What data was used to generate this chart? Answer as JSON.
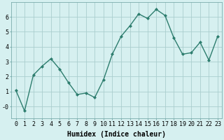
{
  "x": [
    0,
    1,
    2,
    3,
    4,
    5,
    6,
    7,
    8,
    9,
    10,
    11,
    12,
    13,
    14,
    15,
    16,
    17,
    18,
    19,
    20,
    21,
    22,
    23
  ],
  "y": [
    1.1,
    -0.3,
    2.1,
    2.7,
    3.2,
    2.5,
    1.6,
    0.8,
    0.9,
    0.6,
    1.8,
    3.5,
    4.7,
    5.4,
    6.2,
    5.9,
    6.5,
    6.1,
    4.6,
    3.5,
    3.6,
    4.3,
    3.1,
    4.7
  ],
  "line_color": "#2d7d6e",
  "marker": "D",
  "markersize": 2.0,
  "linewidth": 1.0,
  "bg_color": "#d6f0f0",
  "grid_color": "#aacece",
  "xlabel": "Humidex (Indice chaleur)",
  "xlabel_fontsize": 7,
  "tick_fontsize": 6,
  "ylim": [
    -0.8,
    7.0
  ],
  "xlim": [
    -0.5,
    23.5
  ],
  "yticks": [
    0,
    1,
    2,
    3,
    4,
    5,
    6
  ],
  "ytick_labels": [
    "-0",
    "1",
    "2",
    "3",
    "4",
    "5",
    "6"
  ],
  "xticks": [
    0,
    1,
    2,
    3,
    4,
    5,
    6,
    7,
    8,
    9,
    10,
    11,
    12,
    13,
    14,
    15,
    16,
    17,
    18,
    19,
    20,
    21,
    22,
    23
  ]
}
